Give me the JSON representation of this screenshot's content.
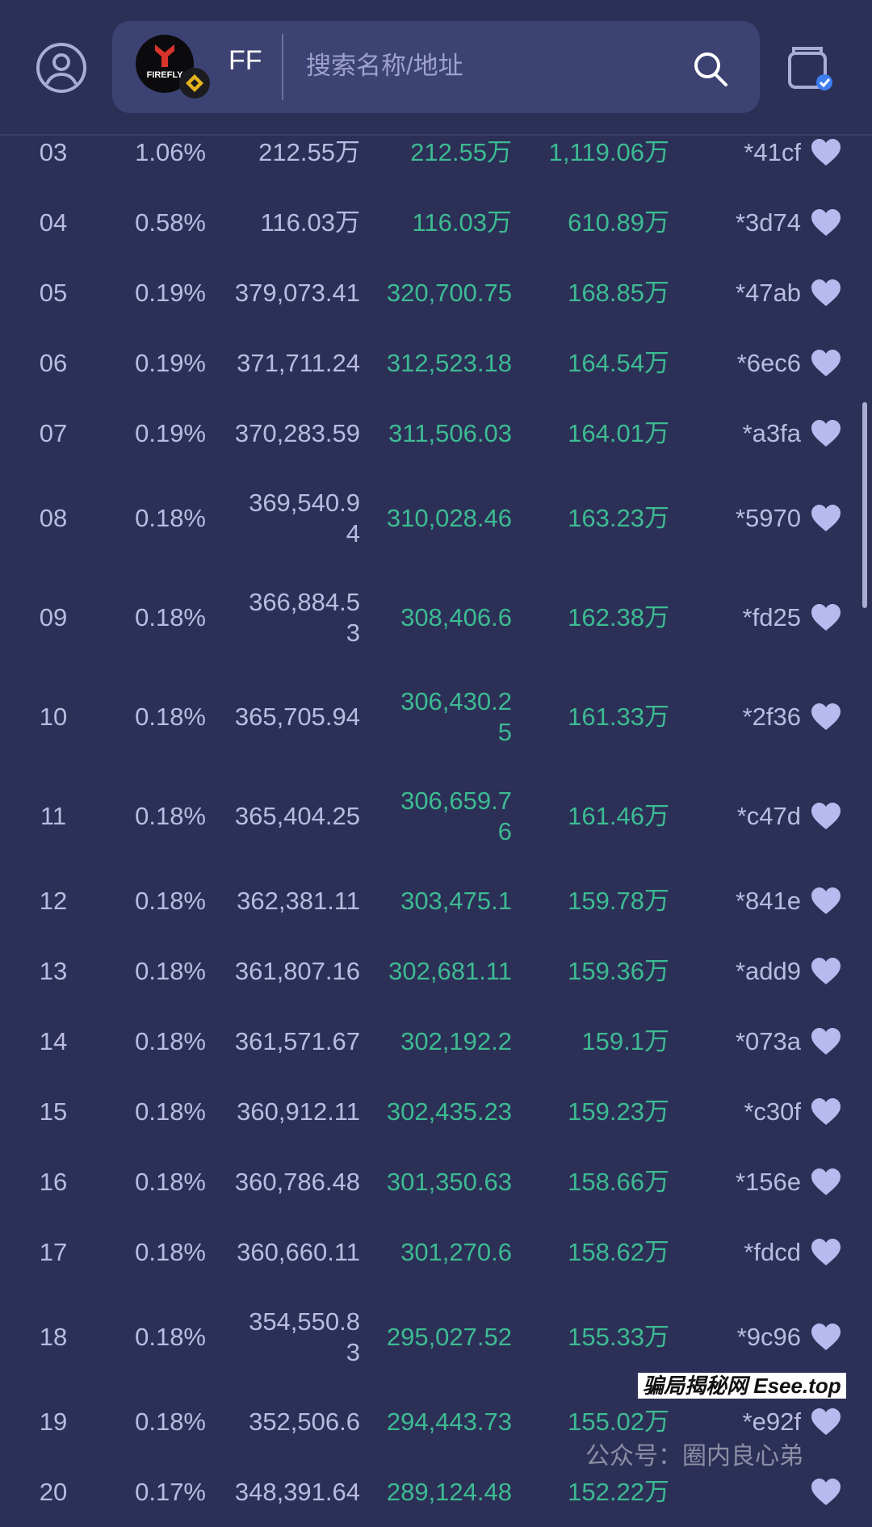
{
  "header": {
    "logo_text": "FIREFLY",
    "token_symbol": "FF",
    "search_placeholder": "搜索名称/地址"
  },
  "colors": {
    "background": "#2c3057",
    "text": "#b9bce0",
    "positive": "#3dbb92",
    "heart": "#b8b9ee"
  },
  "rows": [
    {
      "rank": "03",
      "pct": "1.06%",
      "c3": "212.55万",
      "c4": "212.55万",
      "c5": "1,119.06万",
      "addr": "*41cf"
    },
    {
      "rank": "04",
      "pct": "0.58%",
      "c3": "116.03万",
      "c4": "116.03万",
      "c5": "610.89万",
      "addr": "*3d74"
    },
    {
      "rank": "05",
      "pct": "0.19%",
      "c3": "379,073.41",
      "c4": "320,700.75",
      "c5": "168.85万",
      "addr": "*47ab"
    },
    {
      "rank": "06",
      "pct": "0.19%",
      "c3": "371,711.24",
      "c4": "312,523.18",
      "c5": "164.54万",
      "addr": "*6ec6"
    },
    {
      "rank": "07",
      "pct": "0.19%",
      "c3": "370,283.59",
      "c4": "311,506.03",
      "c5": "164.01万",
      "addr": "*a3fa"
    },
    {
      "rank": "08",
      "pct": "0.18%",
      "c3": "369,540.94",
      "c4": "310,028.46",
      "c5": "163.23万",
      "addr": "*5970"
    },
    {
      "rank": "09",
      "pct": "0.18%",
      "c3": "366,884.53",
      "c4": "308,406.6",
      "c5": "162.38万",
      "addr": "*fd25"
    },
    {
      "rank": "10",
      "pct": "0.18%",
      "c3": "365,705.94",
      "c4": "306,430.25",
      "c5": "161.33万",
      "addr": "*2f36"
    },
    {
      "rank": "11",
      "pct": "0.18%",
      "c3": "365,404.25",
      "c4": "306,659.76",
      "c5": "161.46万",
      "addr": "*c47d"
    },
    {
      "rank": "12",
      "pct": "0.18%",
      "c3": "362,381.11",
      "c4": "303,475.1",
      "c5": "159.78万",
      "addr": "*841e"
    },
    {
      "rank": "13",
      "pct": "0.18%",
      "c3": "361,807.16",
      "c4": "302,681.11",
      "c5": "159.36万",
      "addr": "*add9"
    },
    {
      "rank": "14",
      "pct": "0.18%",
      "c3": "361,571.67",
      "c4": "302,192.2",
      "c5": "159.1万",
      "addr": "*073a"
    },
    {
      "rank": "15",
      "pct": "0.18%",
      "c3": "360,912.11",
      "c4": "302,435.23",
      "c5": "159.23万",
      "addr": "*c30f"
    },
    {
      "rank": "16",
      "pct": "0.18%",
      "c3": "360,786.48",
      "c4": "301,350.63",
      "c5": "158.66万",
      "addr": "*156e"
    },
    {
      "rank": "17",
      "pct": "0.18%",
      "c3": "360,660.11",
      "c4": "301,270.6",
      "c5": "158.62万",
      "addr": "*fdcd"
    },
    {
      "rank": "18",
      "pct": "0.18%",
      "c3": "354,550.83",
      "c4": "295,027.52",
      "c5": "155.33万",
      "addr": "*9c96"
    },
    {
      "rank": "19",
      "pct": "0.18%",
      "c3": "352,506.6",
      "c4": "294,443.73",
      "c5": "155.02万",
      "addr": "*e92f"
    },
    {
      "rank": "20",
      "pct": "0.17%",
      "c3": "348,391.64",
      "c4": "289,124.48",
      "c5": "152.22万",
      "addr": ""
    }
  ],
  "watermark": {
    "wechat": "公众号：圈内良心弟",
    "site": "骗局揭秘网 Esee.top"
  }
}
